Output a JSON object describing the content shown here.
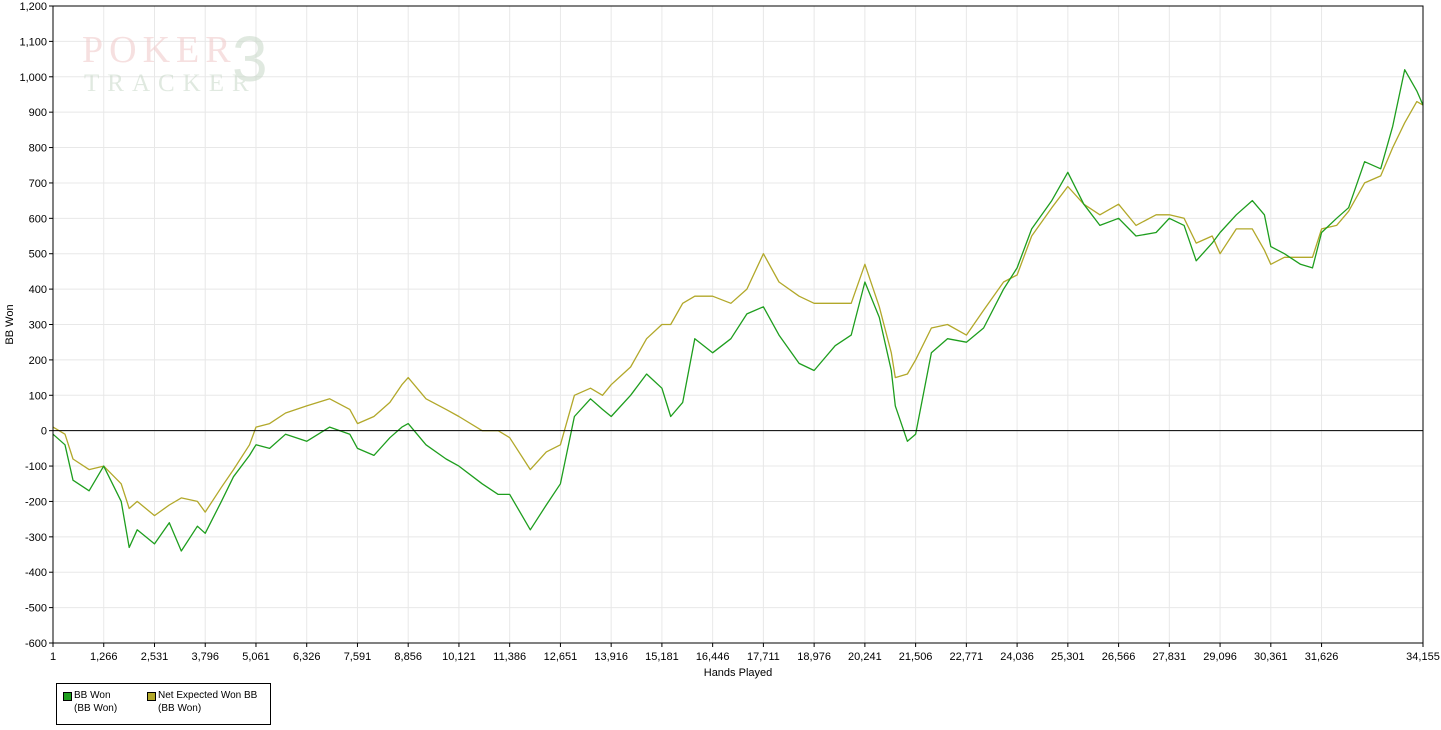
{
  "watermark": {
    "line1": "POKER",
    "line2": "TRACKER",
    "number": "3"
  },
  "chart_data": {
    "type": "line",
    "title": "",
    "xlabel": "Hands Played",
    "ylabel": "BB Won",
    "xlim": [
      1,
      34155
    ],
    "ylim": [
      -600,
      1200
    ],
    "ytick_step": 100,
    "yticks": [
      "-600",
      "-500",
      "-400",
      "-300",
      "-200",
      "-100",
      "0",
      "100",
      "200",
      "300",
      "400",
      "500",
      "600",
      "700",
      "800",
      "900",
      "1,000",
      "1,100",
      "1,200"
    ],
    "xticks": [
      {
        "value": 1,
        "label": "1"
      },
      {
        "value": 1266,
        "label": "1,266"
      },
      {
        "value": 2531,
        "label": "2,531"
      },
      {
        "value": 3796,
        "label": "3,796"
      },
      {
        "value": 5061,
        "label": "5,061"
      },
      {
        "value": 6326,
        "label": "6,326"
      },
      {
        "value": 7591,
        "label": "7,591"
      },
      {
        "value": 8856,
        "label": "8,856"
      },
      {
        "value": 10121,
        "label": "10,121"
      },
      {
        "value": 11386,
        "label": "11,386"
      },
      {
        "value": 12651,
        "label": "12,651"
      },
      {
        "value": 13916,
        "label": "13,916"
      },
      {
        "value": 15181,
        "label": "15,181"
      },
      {
        "value": 16446,
        "label": "16,446"
      },
      {
        "value": 17711,
        "label": "17,711"
      },
      {
        "value": 18976,
        "label": "18,976"
      },
      {
        "value": 20241,
        "label": "20,241"
      },
      {
        "value": 21506,
        "label": "21,506"
      },
      {
        "value": 22771,
        "label": "22,771"
      },
      {
        "value": 24036,
        "label": "24,036"
      },
      {
        "value": 25301,
        "label": "25,301"
      },
      {
        "value": 26566,
        "label": "26,566"
      },
      {
        "value": 27831,
        "label": "27,831"
      },
      {
        "value": 29096,
        "label": "29,096"
      },
      {
        "value": 30361,
        "label": "30,361"
      },
      {
        "value": 31626,
        "label": "31,626"
      },
      {
        "value": 34155,
        "label": "34,155"
      }
    ],
    "grid": true,
    "legend_position": "bottom-left",
    "series": [
      {
        "name": "BB Won",
        "legend_sub": "(BB Won)",
        "color": "#1e9e1e",
        "x": [
          1,
          300,
          500,
          900,
          1266,
          1700,
          1900,
          2100,
          2531,
          2900,
          3200,
          3600,
          3796,
          4200,
          4500,
          4900,
          5061,
          5400,
          5800,
          6326,
          6900,
          7400,
          7591,
          8000,
          8400,
          8700,
          8856,
          9300,
          9800,
          10121,
          10700,
          11100,
          11386,
          11900,
          12300,
          12651,
          13000,
          13400,
          13700,
          13916,
          14400,
          14800,
          15181,
          15400,
          15700,
          16000,
          16446,
          16900,
          17300,
          17711,
          18100,
          18600,
          18976,
          19500,
          19900,
          20241,
          20600,
          20900,
          21000,
          21300,
          21506,
          21900,
          22300,
          22771,
          23200,
          23700,
          24036,
          24400,
          24900,
          25301,
          25700,
          26100,
          26566,
          27000,
          27500,
          27831,
          28200,
          28500,
          28900,
          29096,
          29500,
          29900,
          30200,
          30361,
          30700,
          31100,
          31400,
          31626,
          32000,
          32300,
          32700,
          33100,
          33400,
          33700,
          34000,
          34155
        ],
        "y": [
          -10,
          -40,
          -140,
          -170,
          -100,
          -200,
          -330,
          -280,
          -320,
          -260,
          -340,
          -270,
          -290,
          -200,
          -130,
          -70,
          -40,
          -50,
          -10,
          -30,
          10,
          -10,
          -50,
          -70,
          -20,
          10,
          20,
          -40,
          -80,
          -100,
          -150,
          -180,
          -180,
          -280,
          -210,
          -150,
          40,
          90,
          60,
          40,
          100,
          160,
          120,
          40,
          80,
          260,
          220,
          260,
          330,
          350,
          270,
          190,
          170,
          240,
          270,
          420,
          320,
          170,
          70,
          -30,
          -10,
          220,
          260,
          250,
          290,
          400,
          460,
          570,
          650,
          730,
          640,
          580,
          600,
          550,
          560,
          600,
          580,
          480,
          530,
          560,
          610,
          650,
          610,
          520,
          500,
          470,
          460,
          560,
          600,
          630,
          760,
          740,
          860,
          1020,
          960,
          920
        ]
      },
      {
        "name": "Net Expected Won BB",
        "legend_sub": "(BB Won)",
        "color": "#b2a82a",
        "x": [
          1,
          300,
          500,
          900,
          1266,
          1700,
          1900,
          2100,
          2531,
          2900,
          3200,
          3600,
          3796,
          4200,
          4500,
          4900,
          5061,
          5400,
          5800,
          6326,
          6900,
          7400,
          7591,
          8000,
          8400,
          8700,
          8856,
          9300,
          9800,
          10121,
          10700,
          11100,
          11386,
          11900,
          12300,
          12651,
          13000,
          13400,
          13700,
          13916,
          14400,
          14800,
          15181,
          15400,
          15700,
          16000,
          16446,
          16900,
          17300,
          17711,
          18100,
          18600,
          18976,
          19500,
          19900,
          20241,
          20600,
          20900,
          21000,
          21300,
          21506,
          21900,
          22300,
          22771,
          23200,
          23700,
          24036,
          24400,
          24900,
          25301,
          25700,
          26100,
          26566,
          27000,
          27500,
          27831,
          28200,
          28500,
          28900,
          29096,
          29500,
          29900,
          30200,
          30361,
          30700,
          31100,
          31400,
          31626,
          32000,
          32300,
          32700,
          33100,
          33400,
          33700,
          34000,
          34155
        ],
        "y": [
          10,
          -10,
          -80,
          -110,
          -100,
          -150,
          -220,
          -200,
          -240,
          -210,
          -190,
          -200,
          -230,
          -160,
          -110,
          -40,
          10,
          20,
          50,
          70,
          90,
          60,
          20,
          40,
          80,
          130,
          150,
          90,
          60,
          40,
          0,
          0,
          -20,
          -110,
          -60,
          -40,
          100,
          120,
          100,
          130,
          180,
          260,
          300,
          300,
          360,
          380,
          380,
          360,
          400,
          500,
          420,
          380,
          360,
          360,
          360,
          470,
          350,
          220,
          150,
          160,
          200,
          290,
          300,
          270,
          340,
          420,
          440,
          550,
          630,
          690,
          640,
          610,
          640,
          580,
          610,
          610,
          600,
          530,
          550,
          500,
          570,
          570,
          510,
          470,
          490,
          490,
          490,
          570,
          580,
          620,
          700,
          720,
          800,
          870,
          930,
          920
        ]
      }
    ]
  }
}
